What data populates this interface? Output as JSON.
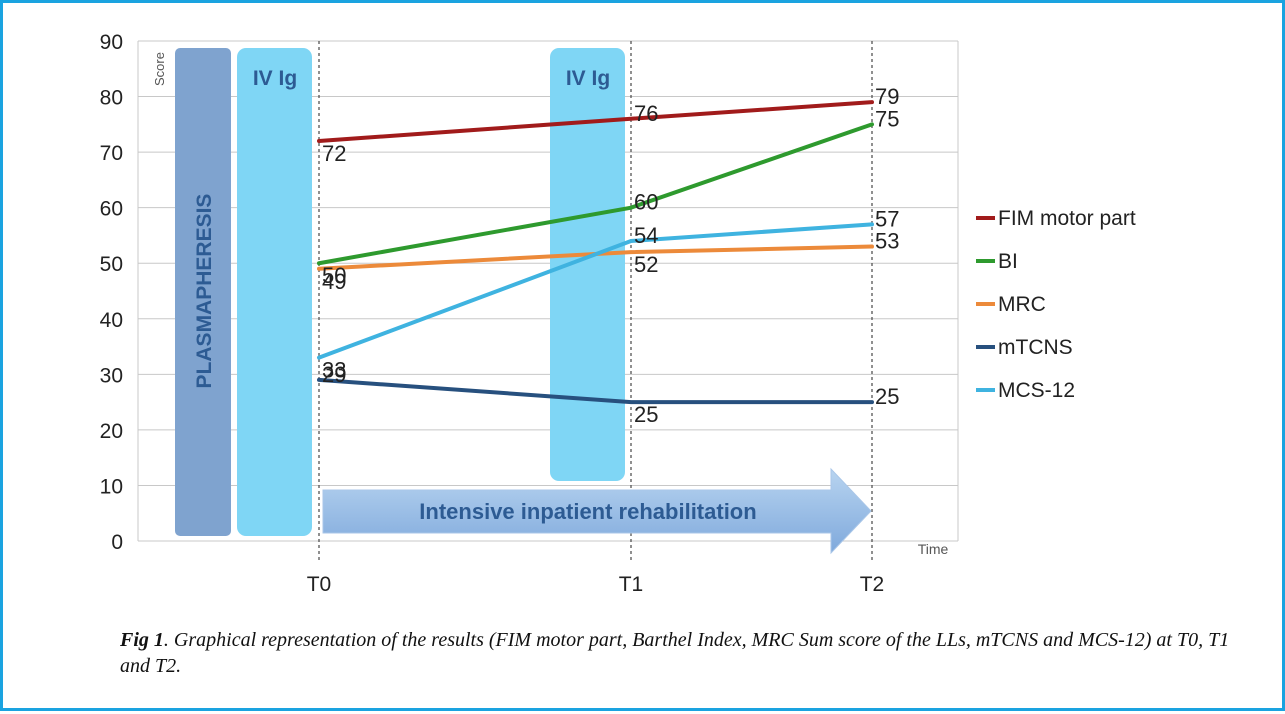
{
  "chart_data": {
    "type": "line",
    "ylabel": "Score",
    "xlabel": "Time",
    "ylim": [
      0,
      90
    ],
    "yticks": [
      0,
      10,
      20,
      30,
      40,
      50,
      60,
      70,
      80,
      90
    ],
    "categories": [
      "T0",
      "T1",
      "T2"
    ],
    "grid": "horizontal",
    "legend_position": "right",
    "series": [
      {
        "name": "FIM motor part",
        "values": [
          72,
          76,
          79
        ],
        "color": "#a11b1b"
      },
      {
        "name": "BI",
        "values": [
          50,
          60,
          75
        ],
        "color": "#2e9a2e"
      },
      {
        "name": "MRC",
        "values": [
          49,
          52,
          53
        ],
        "color": "#ec8a3a"
      },
      {
        "name": "mTCNS",
        "values": [
          29,
          25,
          25
        ],
        "color": "#27507e"
      },
      {
        "name": "MCS-12",
        "values": [
          33,
          54,
          57
        ],
        "color": "#3fb3e0"
      }
    ],
    "annotations": {
      "plasmapheresis": "PLASMAPHERESIS",
      "ivig_1": "IV Ig",
      "ivig_2": "IV Ig",
      "rehab_arrow": "Intensive inpatient rehabilitation"
    }
  },
  "caption": {
    "label": "Fig 1",
    "text": ". Graphical representation of the results (FIM motor part, Barthel Index, MRC Sum score of the LLs, mTCNS and MCS-12) at T0, T1 and T2."
  }
}
